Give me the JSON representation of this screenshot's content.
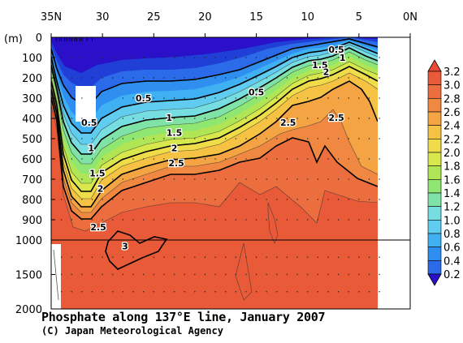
{
  "chart_data": {
    "type": "heatmap",
    "subtype": "filled-contour section",
    "title": "Phosphate along 137°E line, January 2007",
    "credit": "(C) Japan Meteorological Agency",
    "x_axis": {
      "tick_labels": [
        "35N",
        "30",
        "25",
        "20",
        "15",
        "10",
        "5",
        "0N"
      ],
      "tick_values": [
        35,
        30,
        25,
        20,
        15,
        10,
        5,
        0
      ],
      "range": [
        35,
        0
      ],
      "position": "top"
    },
    "y_axis": {
      "unit_label": "(m)",
      "upper_tick_labels": [
        "0",
        "100",
        "200",
        "300",
        "400",
        "500",
        "600",
        "700",
        "800",
        "900",
        "1000"
      ],
      "upper_range": [
        0,
        1000
      ],
      "lower_tick_labels": [
        "1500",
        "2000"
      ],
      "lower_range": [
        1000,
        2000
      ],
      "reversed": true
    },
    "colorbar": {
      "levels": [
        "0.2",
        "0.4",
        "0.6",
        "0.8",
        "1.0",
        "1.2",
        "1.4",
        "1.6",
        "1.8",
        "2.0",
        "2.2",
        "2.4",
        "2.6",
        "2.8",
        "3.0",
        "3.2"
      ],
      "colors": [
        "#1f3fd6",
        "#2b6ae8",
        "#2f8ff0",
        "#3fb0f2",
        "#5fccf0",
        "#76dde0",
        "#7fe3a8",
        "#8fe670",
        "#b0e655",
        "#d8e84c",
        "#f0dc48",
        "#f5c244",
        "#f4a442",
        "#f08842",
        "#ec6e3e",
        "#e85a38"
      ],
      "under_color": "#2a10c8",
      "over_color": "#e84a34"
    },
    "contour_labels": [
      {
        "text": "0.5",
        "lat": 7.2,
        "depth": 60
      },
      {
        "text": "1",
        "lat": 6.6,
        "depth": 100
      },
      {
        "text": "1.5",
        "lat": 8.8,
        "depth": 135
      },
      {
        "text": "2",
        "lat": 8.2,
        "depth": 170
      },
      {
        "text": "0.5",
        "lat": 26.0,
        "depth": 300
      },
      {
        "text": "0.5",
        "lat": 15.0,
        "depth": 270
      },
      {
        "text": "1",
        "lat": 23.5,
        "depth": 395
      },
      {
        "text": "1.5",
        "lat": 23.0,
        "depth": 470
      },
      {
        "text": "2",
        "lat": 23.0,
        "depth": 545
      },
      {
        "text": "2.5",
        "lat": 22.8,
        "depth": 620
      },
      {
        "text": "2.5",
        "lat": 11.9,
        "depth": 420
      },
      {
        "text": "2.5",
        "lat": 7.2,
        "depth": 395
      },
      {
        "text": "0.5",
        "lat": 31.3,
        "depth": 420
      },
      {
        "text": "1",
        "lat": 31.1,
        "depth": 545
      },
      {
        "text": "1.5",
        "lat": 30.5,
        "depth": 670
      },
      {
        "text": "2",
        "lat": 30.2,
        "depth": 745
      },
      {
        "text": "2.5",
        "lat": 30.4,
        "depth": 935
      },
      {
        "text": "3",
        "lat": 27.8,
        "depth": 1090
      }
    ]
  }
}
